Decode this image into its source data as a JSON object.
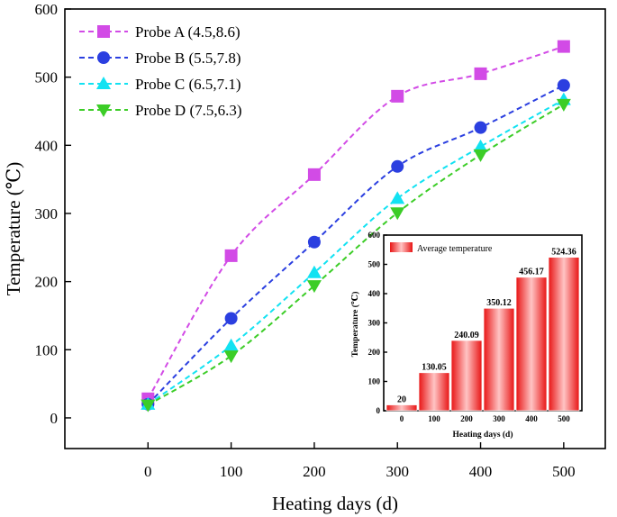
{
  "chart_data": [
    {
      "type": "line",
      "title": "",
      "xlabel": "Heating days (d)",
      "ylabel": "Temperature (℃)",
      "x": [
        0,
        100,
        200,
        300,
        400,
        500
      ],
      "xticks": [
        0,
        100,
        200,
        300,
        400,
        500
      ],
      "xlim": [
        -100,
        550
      ],
      "yticks": [
        0,
        100,
        200,
        300,
        400,
        500,
        600
      ],
      "ylim": [
        -45,
        600
      ],
      "grid": false,
      "legend_position": "top-left",
      "series": [
        {
          "name": "Probe A (4.5,8.6)",
          "marker": "square",
          "color": "#d24be6",
          "values": [
            28,
            238,
            357,
            472,
            505,
            545
          ]
        },
        {
          "name": "Probe B (5.5,7.8)",
          "marker": "circle",
          "color": "#2b3fe0",
          "values": [
            20,
            146,
            258,
            369,
            426,
            488
          ]
        },
        {
          "name": "Probe C (6.5,7.1)",
          "marker": "triangle-up",
          "color": "#12e2f2",
          "values": [
            20,
            106,
            213,
            322,
            398,
            467
          ]
        },
        {
          "name": "Probe D (7.5,6.3)",
          "marker": "triangle-down",
          "color": "#3ccd27",
          "values": [
            19,
            91,
            194,
            301,
            386,
            460
          ]
        }
      ]
    },
    {
      "type": "bar",
      "title": "",
      "xlabel": "Heating days (d)",
      "ylabel": "Temperature (℃)",
      "categories": [
        "0",
        "100",
        "200",
        "300",
        "400",
        "500"
      ],
      "values": [
        20,
        130.05,
        240.09,
        350.12,
        456.17,
        524.36
      ],
      "value_labels": [
        "20",
        "130.05",
        "240.09",
        "350.12",
        "456.17",
        "524.36"
      ],
      "yticks": [
        0,
        100,
        200,
        300,
        400,
        500,
        600
      ],
      "ylim": [
        0,
        600
      ],
      "legend_position": "top-left",
      "series": [
        {
          "name": "Average temperature",
          "color": "#ee1b1b"
        }
      ]
    }
  ]
}
